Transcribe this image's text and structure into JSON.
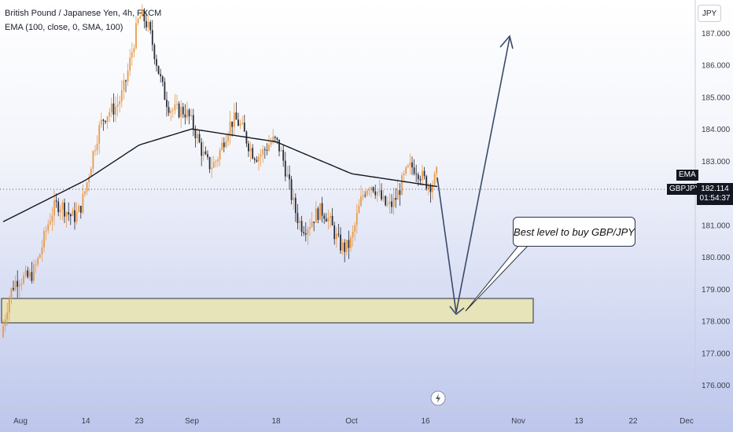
{
  "header": {
    "symbol_title": "British Pound / Japanese Yen, 4h, FXCM",
    "indicator_title": "EMA (100, close, 0, SMA, 100)"
  },
  "currency": "JPY",
  "price_tags": {
    "ema_label": "EMA",
    "symbol_label": "GBPJPY",
    "last_price": "182.114",
    "countdown": "01:54:37"
  },
  "annotation": {
    "callout_text": "Best level to buy GBP/JPY"
  },
  "colors": {
    "up_candle": "#e89a4a",
    "down_candle": "#2a2e39",
    "ema_line": "#131722",
    "zone_fill": "#e6e4b8",
    "zone_border": "#2a2e39",
    "arrow": "#3a4a6a"
  },
  "chart_data": {
    "type": "candlestick",
    "y_axis": {
      "ticks": [
        "187.000",
        "186.000",
        "185.000",
        "184.000",
        "183.000",
        "182.000",
        "181.000",
        "180.000",
        "179.000",
        "178.000",
        "177.000",
        "176.000"
      ],
      "range": [
        175.2,
        187.6
      ]
    },
    "x_axis": {
      "ticks": [
        "Aug",
        "14",
        "23",
        "Sep",
        "18",
        "Oct",
        "16",
        "Nov",
        "13",
        "22",
        "Dec"
      ]
    },
    "last_price": 182.114,
    "ema_path": [
      {
        "x": "Aug",
        "y": 181.1
      },
      {
        "x": "14",
        "y": 182.4
      },
      {
        "x": "23",
        "y": 183.5
      },
      {
        "x": "Sep",
        "y": 184.0
      },
      {
        "x": "18",
        "y": 183.6
      },
      {
        "x": "Oct",
        "y": 182.6
      },
      {
        "x": "16",
        "y": 182.2
      }
    ],
    "price_path": [
      {
        "x": "Aug",
        "y": 177.5
      },
      {
        "x": "14",
        "y": 183.0
      },
      {
        "x": "23",
        "y": 186.5
      },
      {
        "x": "Sep",
        "y": 184.2
      },
      {
        "x": "18",
        "y": 182.8
      },
      {
        "x": "Oct",
        "y": 180.5
      },
      {
        "x": "16",
        "y": 183.6
      }
    ],
    "support_zone": {
      "low": 177.9,
      "high": 178.7
    },
    "projection": [
      {
        "label": "start",
        "y": 182.5
      },
      {
        "label": "bottom",
        "y": 178.2
      },
      {
        "label": "target",
        "y": 187.0
      }
    ]
  }
}
